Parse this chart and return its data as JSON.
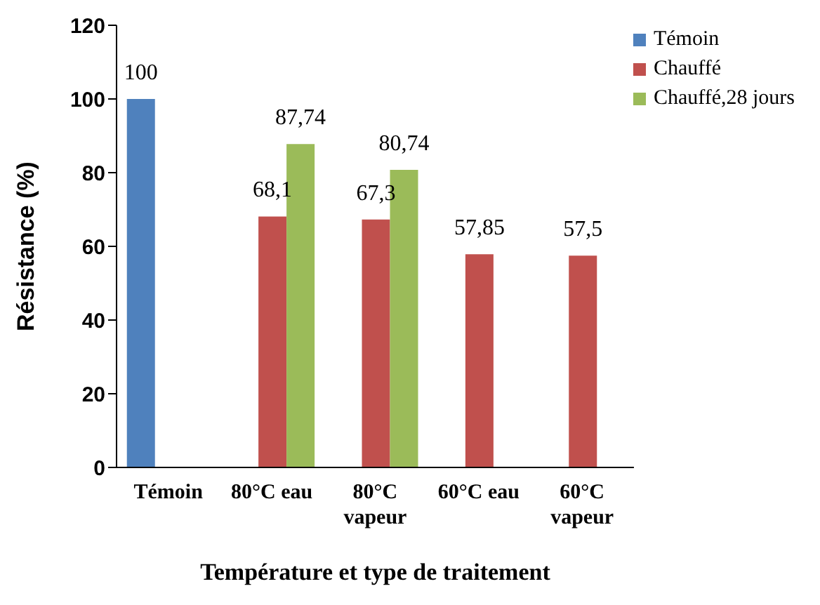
{
  "chart_data": {
    "type": "bar",
    "xlabel": "Température et type de traitement",
    "ylabel": "Résistance (%)",
    "categories": [
      "Témoin",
      "80°C eau",
      "80°C vapeur",
      "60°C eau",
      "60°C vapeur"
    ],
    "series": [
      {
        "name": "Témoin",
        "color": "#4f81bd",
        "values": [
          100,
          null,
          null,
          null,
          null
        ],
        "value_labels": [
          "100",
          null,
          null,
          null,
          null
        ]
      },
      {
        "name": "Chauffé",
        "color": "#c0504d",
        "values": [
          null,
          68.1,
          67.3,
          57.85,
          57.5
        ],
        "value_labels": [
          null,
          "68,1",
          "67,3",
          "57,85",
          "57,5"
        ]
      },
      {
        "name": "Chauffé,28 jours",
        "color": "#9bbb59",
        "values": [
          null,
          87.74,
          80.74,
          null,
          null
        ],
        "value_labels": [
          null,
          "87,74",
          "80,74",
          null,
          null
        ]
      }
    ],
    "ylim": [
      0,
      120
    ],
    "yticks": [
      0,
      20,
      40,
      60,
      80,
      100,
      120
    ],
    "grid": false,
    "legend": "top right"
  }
}
